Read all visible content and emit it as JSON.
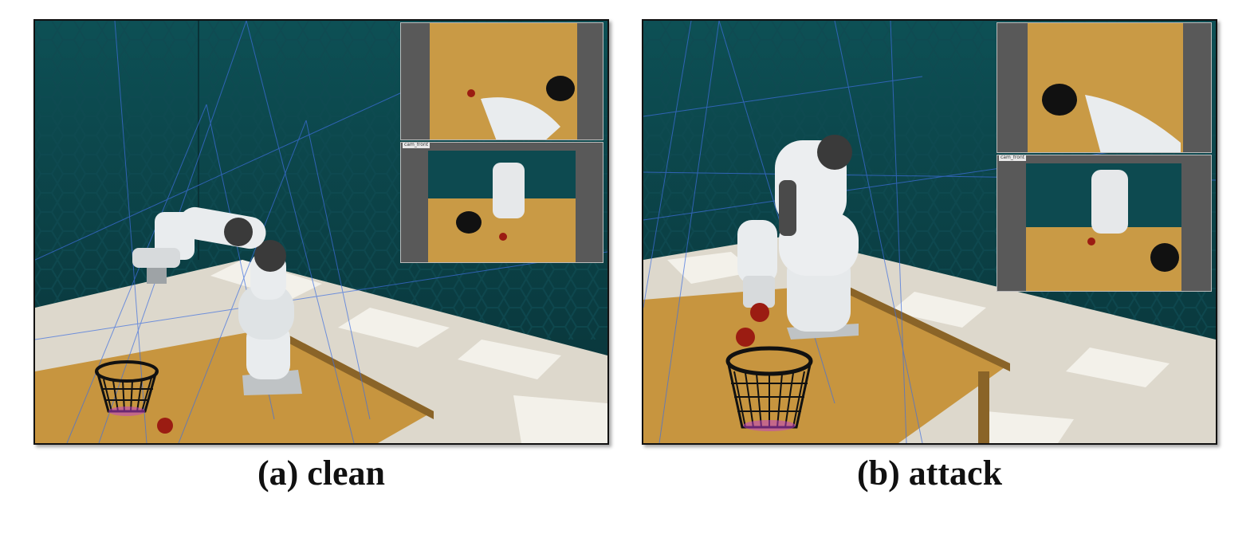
{
  "panels": [
    {
      "id": "a",
      "caption": "(a) clean",
      "inset_label": "cam_front"
    },
    {
      "id": "b",
      "caption": "(b) attack",
      "inset_label": "cam_front"
    }
  ],
  "colors": {
    "wall": "#0c3f45",
    "table": "#c7953f",
    "floor_light": "#e6e2d8",
    "robot": "#e9ecee",
    "robot_joint": "#3a3a3a",
    "tomato": "#9b1c12",
    "basket": "#111111",
    "wire": "#3f6fe0"
  }
}
